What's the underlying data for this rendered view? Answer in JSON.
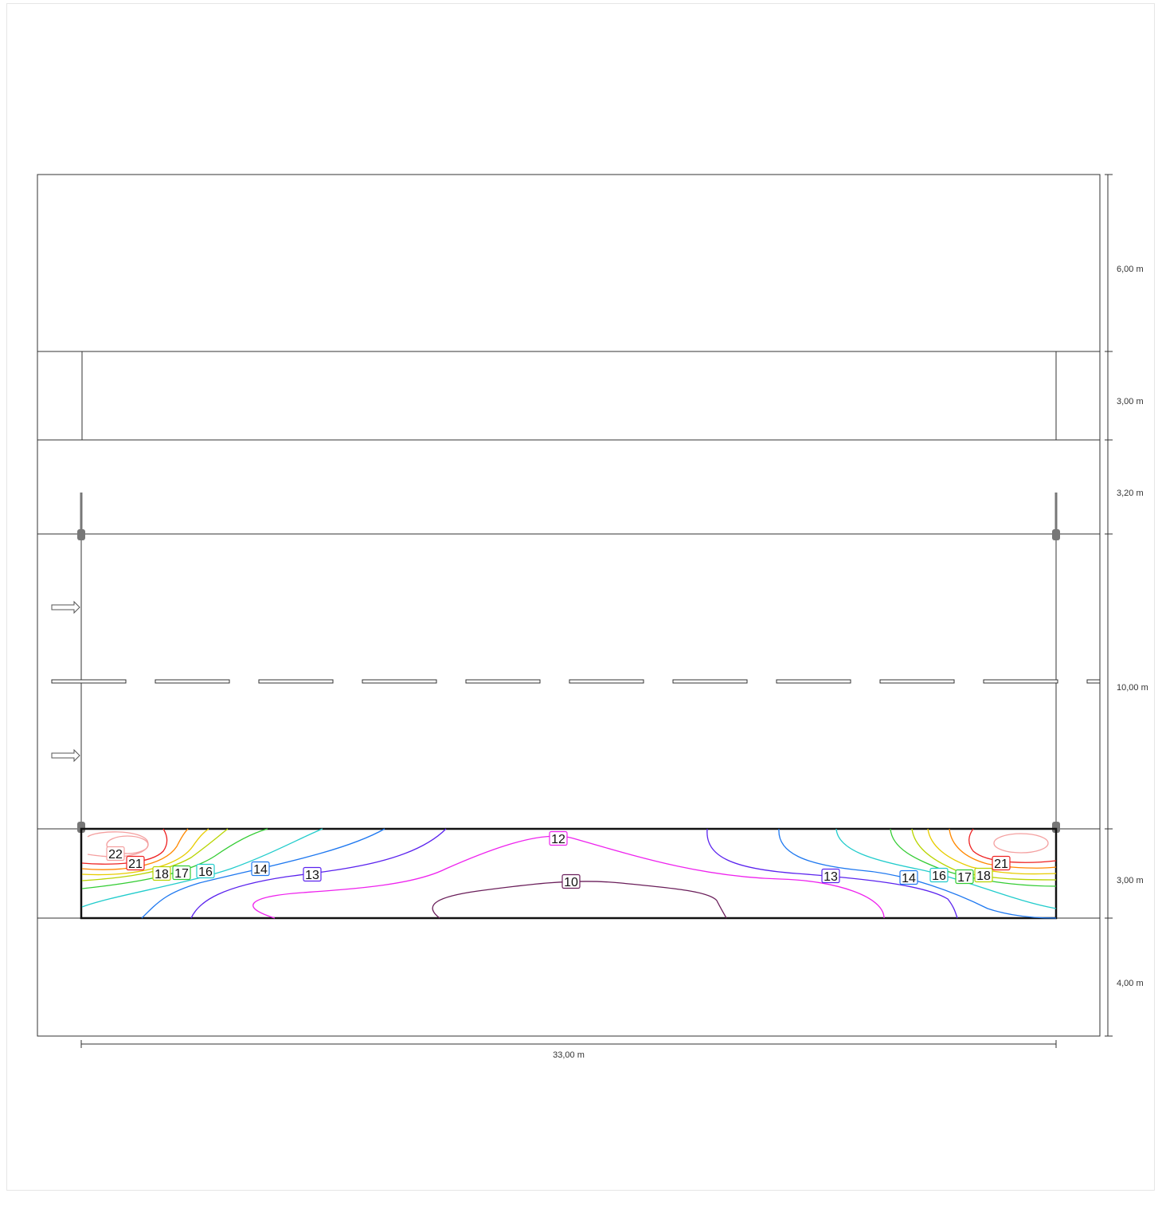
{
  "dimensions": {
    "vertical": [
      "6,00 m",
      "3,00 m",
      "3,20 m",
      "10,00 m",
      "3,00 m",
      "4,00 m"
    ],
    "horizontal": "33,00 m"
  },
  "contour_colors": {
    "22": "#f4a0a0",
    "21": "#ee2222",
    "18": "#b8d400",
    "17": "#33cc33",
    "16": "#22cccc",
    "14": "#1e78f0",
    "13": "#5a22ee",
    "12": "#ee22ee",
    "10": "#6a1e5a"
  },
  "contour_labels": [
    "22",
    "21",
    "18",
    "17",
    "16",
    "14",
    "13",
    "12",
    "10",
    "13",
    "14",
    "16",
    "17",
    "18",
    "21"
  ]
}
